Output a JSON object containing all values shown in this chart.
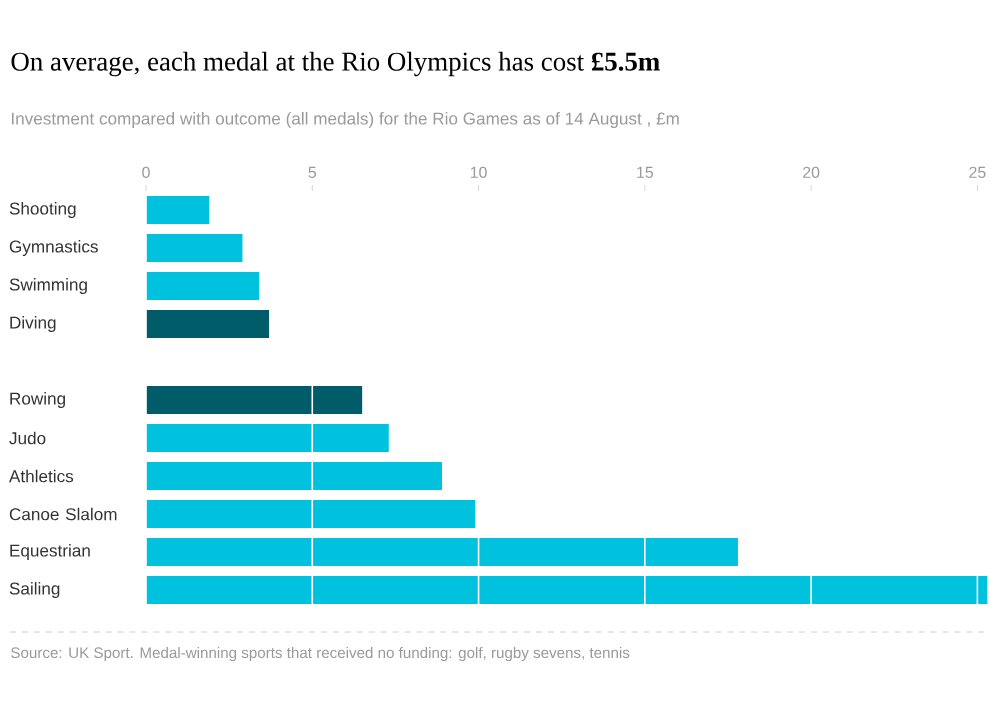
{
  "chart_data": {
    "type": "bar",
    "orientation": "horizontal",
    "title": "On average, each medal at the Rio Olympics has cost **£5.5m**",
    "subtitle": "Investment compared with outcome (all medals) for the Rio Games as of 14 August , £m",
    "categories": [
      "Shooting",
      "Gymnastics",
      "Swimming",
      "Diving",
      null,
      "Rowing",
      "Judo",
      "Athletics",
      "Canoe Slalom",
      "Equestrian",
      "Sailing"
    ],
    "values": [
      1.9,
      2.9,
      3.4,
      3.7,
      null,
      6.5,
      7.3,
      8.9,
      9.9,
      17.8,
      25.3
    ],
    "colors": [
      "#00c1de",
      "#00c1de",
      "#00c1de",
      "#005c69",
      "#00c1de",
      "#005c69",
      "#00c1de",
      "#00c1de",
      "#00c1de",
      "#00c1de",
      "#00c1de"
    ],
    "xlim": [
      0,
      25.5
    ],
    "xticks": [
      0,
      5,
      10,
      15,
      20,
      25
    ],
    "grid": "x",
    "annotations": [
      "Source: UK Sport. Medal-winning sports that received no funding: golf, rugby sevens, tennis"
    ]
  }
}
